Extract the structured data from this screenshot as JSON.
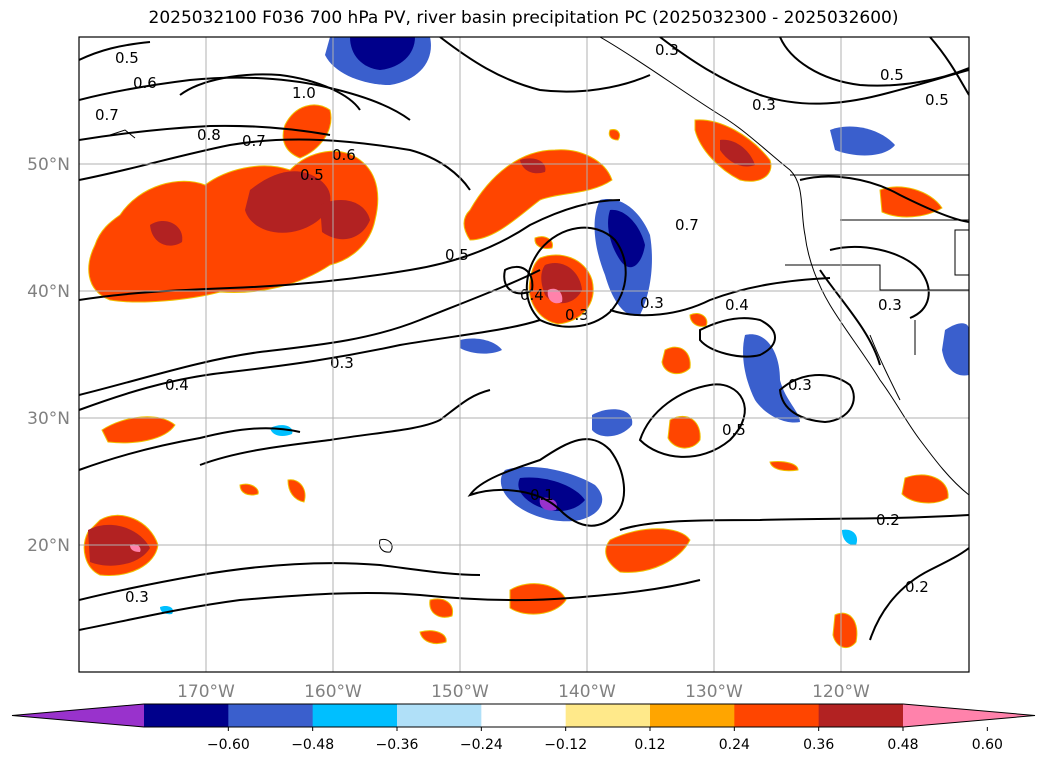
{
  "title": "2025032100 F036 700 hPa PV, river basin precipitation PC (2025032300 - 2025032600)",
  "lat_ticks": [
    {
      "value": 50,
      "label": "50°N"
    },
    {
      "value": 40,
      "label": "40°N"
    },
    {
      "value": 30,
      "label": "30°N"
    },
    {
      "value": 20,
      "label": "20°N"
    }
  ],
  "lon_ticks": [
    {
      "value": -170,
      "label": "170°W"
    },
    {
      "value": -160,
      "label": "160°W"
    },
    {
      "value": -150,
      "label": "150°W"
    },
    {
      "value": -140,
      "label": "140°W"
    },
    {
      "value": -130,
      "label": "130°W"
    },
    {
      "value": -120,
      "label": "120°W"
    }
  ],
  "extent": {
    "lon_min": -180,
    "lon_max": -110,
    "lat_min": 10,
    "lat_max": 60
  },
  "colorbar": {
    "colors": [
      "#9932cc",
      "#00008b",
      "#3a5fcd",
      "#00bfff",
      "#b0e0f8",
      "#ffffff",
      "#ffe98a",
      "#ffa500",
      "#ff4500",
      "#b22222",
      "#ff82ab"
    ],
    "ticks": [
      {
        "index": 1,
        "label": "−0.60"
      },
      {
        "index": 2,
        "label": "−0.48"
      },
      {
        "index": 3,
        "label": "−0.36"
      },
      {
        "index": 4,
        "label": "−0.24"
      },
      {
        "index": 5,
        "label": "−0.12"
      },
      {
        "index": 6,
        "label": "0.12"
      },
      {
        "index": 7,
        "label": "0.24"
      },
      {
        "index": 8,
        "label": "0.36"
      },
      {
        "index": 9,
        "label": "0.48"
      },
      {
        "index": 10,
        "label": "0.60"
      }
    ]
  },
  "contour_labels": [
    "0.5",
    "0.6",
    "0.7",
    "1.0",
    "0.8",
    "0.7",
    "0.6",
    "0.5",
    "0.3",
    "0.5",
    "0.3",
    "0.5",
    "0.5",
    "0.4",
    "0.3",
    "0.7",
    "0.4",
    "0.3",
    "0.3",
    "0.5",
    "0.3",
    "0.4",
    "0.3",
    "0.1",
    "0.2",
    "0.2",
    "0.3"
  ]
}
